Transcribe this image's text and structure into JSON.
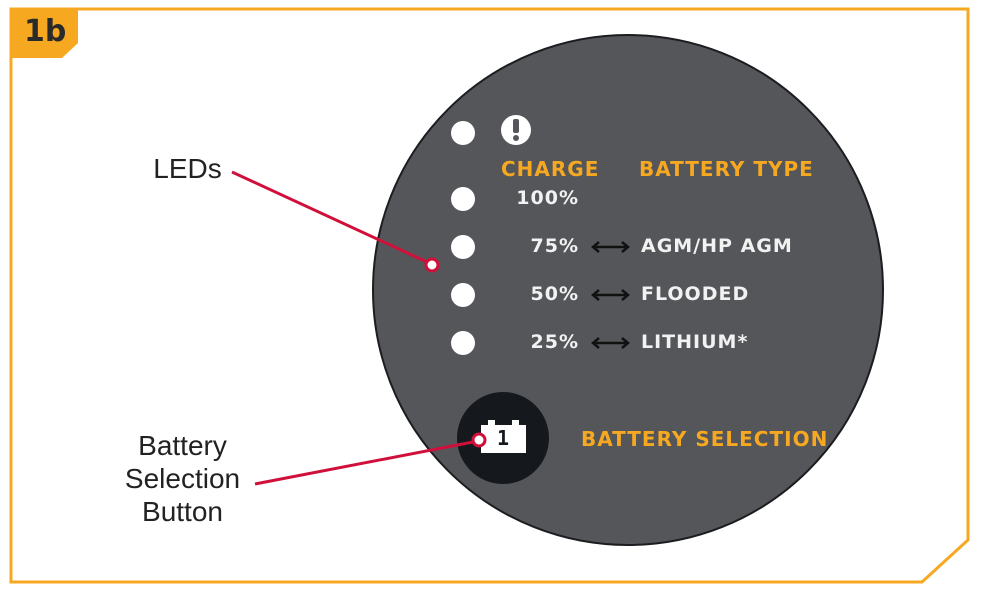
{
  "badge": "1b",
  "callouts": {
    "leds": "LEDs",
    "button_line1": "Battery",
    "button_line2": "Selection",
    "button_line3": "Button"
  },
  "panel": {
    "charge_header": "CHARGE",
    "type_header": "BATTERY TYPE",
    "rows": [
      {
        "charge": "100%",
        "type": ""
      },
      {
        "charge": "75%",
        "type": "AGM/HP AGM"
      },
      {
        "charge": "50%",
        "type": "FLOODED"
      },
      {
        "charge": "25%",
        "type": "LITHIUM*"
      }
    ],
    "button_label": "BATTERY SELECTION",
    "button_number": "1"
  },
  "colors": {
    "frame": "#f6a821",
    "panel": "#54565a",
    "callout": "#d0103a",
    "button": "#15191e"
  }
}
